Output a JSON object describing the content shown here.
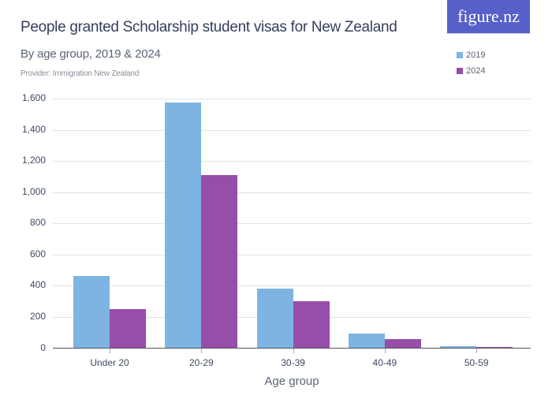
{
  "header": {
    "title": "People granted Scholarship student visas for New Zealand",
    "subtitle": "By age group, 2019 & 2024",
    "provider": "Provider: Immigration New Zealand",
    "logo": "figure.nz"
  },
  "legend": [
    {
      "label": "2019",
      "color": "#7eb4e2"
    },
    {
      "label": "2024",
      "color": "#974daa"
    }
  ],
  "chart_data": {
    "type": "bar",
    "title": "People granted Scholarship student visas for New Zealand",
    "subtitle": "By age group, 2019 & 2024",
    "xlabel": "Age group",
    "ylabel": "",
    "categories": [
      "Under 20",
      "20-29",
      "30-39",
      "40-49",
      "50-59"
    ],
    "series": [
      {
        "name": "2019",
        "color": "#7eb4e2",
        "values": [
          464,
          1575,
          384,
          91,
          12
        ]
      },
      {
        "name": "2024",
        "color": "#974daa",
        "values": [
          252,
          1111,
          301,
          59,
          7
        ]
      }
    ],
    "ylim": [
      0,
      1600
    ],
    "yticks": [
      "0",
      "200",
      "400",
      "600",
      "800",
      "1,000",
      "1,200",
      "1,400",
      "1,600"
    ],
    "grid": true,
    "legend_position": "top-right"
  }
}
